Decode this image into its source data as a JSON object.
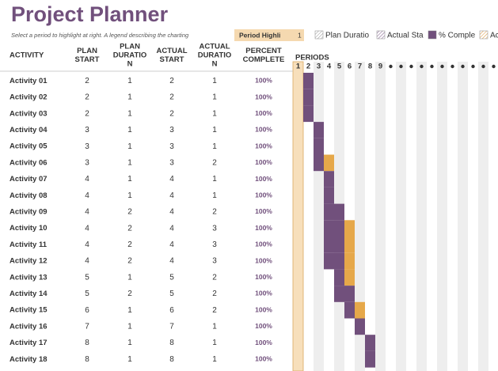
{
  "header": {
    "title": "Project Planner",
    "subtitle": "Select a period to highlight at right.  A legend describing the charting",
    "period_highlight_label": "Period Highli",
    "period_highlight_value": 1,
    "legend": [
      "Plan Duratio",
      "Actual Sta",
      "% Comple",
      "Ac"
    ]
  },
  "table": {
    "columns": [
      [
        "ACTIVITY"
      ],
      [
        "PLAN",
        "START"
      ],
      [
        "PLAN",
        "DURATIO",
        "N"
      ],
      [
        "ACTUAL",
        "START"
      ],
      [
        "ACTUAL",
        "DURATIO",
        "N"
      ],
      [
        "PERCENT",
        "COMPLETE"
      ]
    ],
    "periods_label": "PERIODS",
    "periods": [
      1,
      2,
      3,
      4,
      5,
      6,
      7,
      8,
      9
    ],
    "rows": [
      [
        "Activity 01",
        2,
        1,
        2,
        1,
        "100%"
      ],
      [
        "Activity 02",
        2,
        1,
        2,
        1,
        "100%"
      ],
      [
        "Activity 03",
        2,
        1,
        2,
        1,
        "100%"
      ],
      [
        "Activity 04",
        3,
        1,
        3,
        1,
        "100%"
      ],
      [
        "Activity 05",
        3,
        1,
        3,
        1,
        "100%"
      ],
      [
        "Activity 06",
        3,
        1,
        3,
        2,
        "100%"
      ],
      [
        "Activity 07",
        4,
        1,
        4,
        1,
        "100%"
      ],
      [
        "Activity 08",
        4,
        1,
        4,
        1,
        "100%"
      ],
      [
        "Activity 09",
        4,
        2,
        4,
        2,
        "100%"
      ],
      [
        "Activity 10",
        4,
        2,
        4,
        3,
        "100%"
      ],
      [
        "Activity 11",
        4,
        2,
        4,
        3,
        "100%"
      ],
      [
        "Activity 12",
        4,
        2,
        4,
        3,
        "100%"
      ],
      [
        "Activity 13",
        5,
        1,
        5,
        2,
        "100%"
      ],
      [
        "Activity 14",
        5,
        2,
        5,
        2,
        "100%"
      ],
      [
        "Activity 15",
        6,
        1,
        6,
        2,
        "100%"
      ],
      [
        "Activity 16",
        7,
        1,
        7,
        1,
        "100%"
      ],
      [
        "Activity 17",
        8,
        1,
        8,
        1,
        "100%"
      ],
      [
        "Activity 18",
        8,
        1,
        8,
        1,
        "100%"
      ]
    ]
  }
}
